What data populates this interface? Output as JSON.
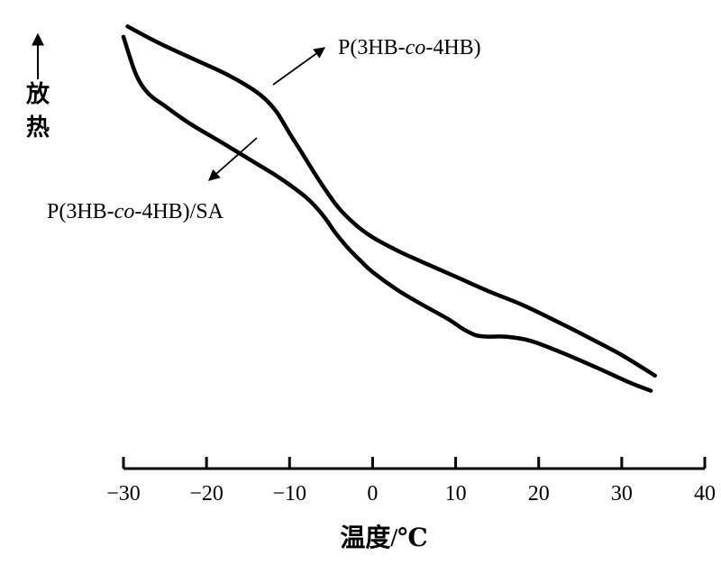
{
  "chart_data": {
    "type": "line",
    "title": "",
    "xlabel": "温度/℃",
    "ylabel": "放热",
    "xlim": [
      -30,
      40
    ],
    "x_ticks": [
      -30,
      -20,
      -10,
      0,
      10,
      20,
      30,
      40
    ],
    "x_tick_labels": [
      "−30",
      "−20",
      "−10",
      "0",
      "10",
      "20",
      "30",
      "40"
    ],
    "grid": false,
    "series": [
      {
        "name": "P(3HB-co-4HB)",
        "x": [
          -29.5,
          -26,
          -22,
          -18,
          -15,
          -13,
          -11.5,
          -10,
          -8.5,
          -7,
          -5.5,
          -4,
          -2,
          0,
          3,
          6,
          10,
          14,
          18,
          22,
          26,
          30,
          34
        ],
        "y": [
          10,
          9.63,
          9.26,
          8.9,
          8.57,
          8.28,
          7.94,
          7.45,
          6.98,
          6.5,
          6.05,
          5.65,
          5.26,
          4.97,
          4.65,
          4.38,
          4.03,
          3.68,
          3.36,
          2.98,
          2.58,
          2.16,
          1.67
        ]
      },
      {
        "name": "P(3HB-co-4HB)/SA",
        "x": [
          -30,
          -28.5,
          -27,
          -25,
          -22,
          -18,
          -14,
          -11,
          -8,
          -6,
          -4.5,
          -3,
          -1.5,
          0,
          3,
          6,
          9,
          11,
          12.5,
          14,
          16,
          19,
          23,
          27,
          31,
          33.5
        ],
        "y": [
          9.75,
          8.86,
          8.4,
          8.1,
          7.68,
          7.21,
          6.73,
          6.36,
          5.92,
          5.5,
          5.08,
          4.72,
          4.42,
          4.14,
          3.71,
          3.36,
          3.03,
          2.77,
          2.63,
          2.6,
          2.6,
          2.5,
          2.2,
          1.86,
          1.5,
          1.31
        ]
      }
    ],
    "annotations": [
      {
        "text": "P(3HB-co-4HB)",
        "prefix": "P(3HB-",
        "italic": "co",
        "suffix": "-4HB)",
        "target": "series.0"
      },
      {
        "text": "P(3HB-co-4HB)/SA",
        "prefix": "P(3HB-",
        "italic": "co",
        "suffix": "-4HB)/SA",
        "target": "series.1"
      }
    ]
  }
}
